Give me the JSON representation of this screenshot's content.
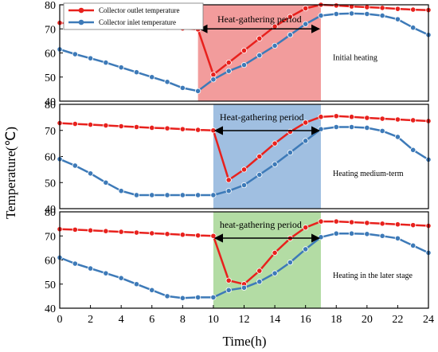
{
  "chart_data": {
    "type": "line",
    "xlabel": "Time(h)",
    "ylabel": "Temperature(℃)",
    "xlim": [
      0,
      24
    ],
    "xticks": [
      0,
      2,
      4,
      6,
      8,
      10,
      12,
      14,
      16,
      18,
      20,
      22,
      24
    ],
    "x": [
      0,
      1,
      2,
      3,
      4,
      5,
      6,
      7,
      8,
      9,
      10,
      11,
      12,
      13,
      14,
      15,
      16,
      17,
      18,
      19,
      20,
      21,
      22,
      23,
      24
    ],
    "legend": {
      "placement": "top-left",
      "entries": [
        "Collector outlet temperature",
        "Collector inlet temperature"
      ]
    },
    "colors": {
      "outlet": "#e8211d",
      "inlet": "#3d7ab8",
      "period_initial": "#f08b8b",
      "period_medium": "#8fb4dc",
      "period_later": "#a6d694"
    },
    "panels": [
      {
        "label": "Initial heating",
        "ylim": [
          40,
          80
        ],
        "yticks": [
          40,
          50,
          60,
          70,
          80
        ],
        "period": {
          "label": "Heat-gathering period",
          "start": 9,
          "end": 17
        },
        "series": [
          {
            "name": "Collector outlet temperature",
            "x": [
              0,
              1,
              2,
              3,
              4,
              5,
              6,
              7,
              8,
              9,
              10,
              11,
              12,
              13,
              14,
              15,
              16,
              17,
              18,
              19,
              20,
              21,
              22,
              23,
              24
            ],
            "values": [
              72.5,
              72.2,
              71.8,
              71.5,
              71.2,
              71.0,
              70.8,
              70.5,
              70.2,
              69.8,
              51,
              56,
              61,
              66,
              71,
              75,
              78.5,
              80,
              79.7,
              79.3,
              79,
              78.7,
              78.3,
              78,
              77.8
            ]
          },
          {
            "name": "Collector inlet temperature",
            "x": [
              0,
              1,
              2,
              3,
              4,
              5,
              6,
              7,
              8,
              9,
              10,
              11,
              12,
              13,
              14,
              15,
              16,
              17,
              18,
              19,
              20,
              21,
              22,
              23,
              24
            ],
            "values": [
              61.5,
              59.5,
              57.8,
              56,
              54,
              52,
              50,
              48,
              45.5,
              44.2,
              49,
              52.5,
              55,
              59,
              63,
              67.5,
              72,
              75.5,
              76.2,
              76.4,
              76.2,
              75.5,
              74,
              70.5,
              67.5
            ]
          }
        ]
      },
      {
        "label": "Heating medium-term",
        "ylim": [
          40,
          80
        ],
        "yticks": [
          40,
          50,
          60,
          70,
          80
        ],
        "period": {
          "label": "Heat-gathering period",
          "start": 10,
          "end": 17
        },
        "series": [
          {
            "name": "Collector outlet temperature",
            "x": [
              0,
              1,
              2,
              3,
              4,
              5,
              6,
              7,
              8,
              9,
              10,
              11,
              12,
              13,
              14,
              15,
              16,
              17,
              18,
              19,
              20,
              21,
              22,
              23,
              24
            ],
            "values": [
              72.8,
              72.5,
              72.2,
              71.9,
              71.6,
              71.3,
              71.0,
              70.8,
              70.5,
              70.2,
              70.0,
              51,
              55,
              60,
              65,
              69.5,
              73,
              75.2,
              75.5,
              75.2,
              74.8,
              74.5,
              74.2,
              73.9,
              73.6
            ]
          },
          {
            "name": "Collector inlet temperature",
            "x": [
              0,
              1,
              2,
              3,
              4,
              5,
              6,
              7,
              8,
              9,
              10,
              11,
              12,
              13,
              14,
              15,
              16,
              17,
              18,
              19,
              20,
              21,
              22,
              23,
              24
            ],
            "values": [
              59,
              56.5,
              53.5,
              50,
              46.8,
              45.2,
              45.2,
              45.2,
              45.2,
              45.2,
              45.2,
              46.8,
              49,
              53,
              57,
              61.5,
              66,
              70.5,
              71.3,
              71.3,
              71,
              69.8,
              67.5,
              62.5,
              58.8
            ]
          }
        ]
      },
      {
        "label": "Heating in the later stage",
        "ylim": [
          40,
          80
        ],
        "yticks": [
          40,
          50,
          60,
          70,
          80
        ],
        "period": {
          "label": "heat-gathering period",
          "start": 10,
          "end": 17
        },
        "series": [
          {
            "name": "Collector outlet temperature",
            "x": [
              0,
              1,
              2,
              3,
              4,
              5,
              6,
              7,
              8,
              9,
              10,
              11,
              12,
              13,
              14,
              15,
              16,
              17,
              18,
              19,
              20,
              21,
              22,
              23,
              24
            ],
            "values": [
              72.8,
              72.6,
              72.3,
              72.0,
              71.7,
              71.4,
              71.1,
              70.8,
              70.5,
              70.2,
              70.0,
              51.5,
              50,
              55.5,
              63,
              69,
              73.5,
              76,
              76,
              75.7,
              75.4,
              75.1,
              74.8,
              74.5,
              74.2
            ]
          },
          {
            "name": "Collector inlet temperature",
            "x": [
              0,
              1,
              2,
              3,
              4,
              5,
              6,
              7,
              8,
              9,
              10,
              11,
              12,
              13,
              14,
              15,
              16,
              17,
              18,
              19,
              20,
              21,
              22,
              23,
              24
            ],
            "values": [
              61,
              58.5,
              56.5,
              54.5,
              52.5,
              50,
              47.5,
              45,
              44.2,
              44.5,
              44.5,
              47.5,
              48.5,
              51,
              54.5,
              59,
              64.5,
              69.5,
              71,
              71,
              70.8,
              70,
              69,
              66,
              63
            ]
          }
        ]
      }
    ]
  }
}
